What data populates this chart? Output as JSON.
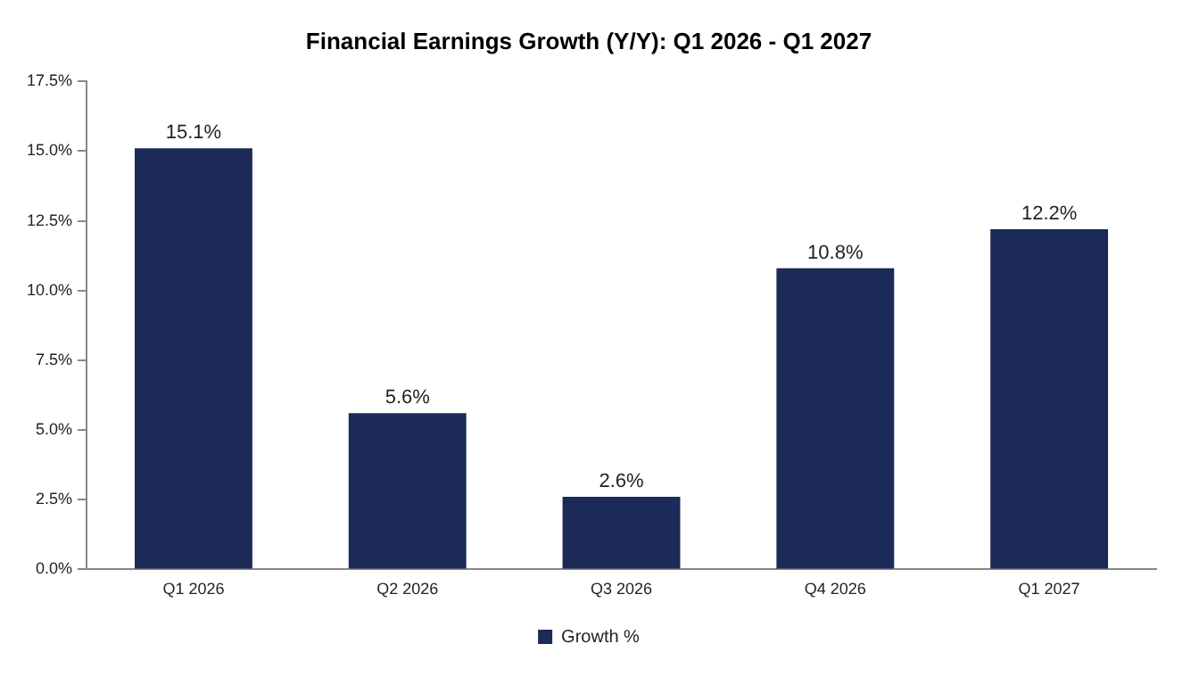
{
  "chart_data": {
    "type": "bar",
    "title": "Financial Earnings Growth (Y/Y): Q1 2026 - Q1 2027",
    "categories": [
      "Q1 2026",
      "Q2 2026",
      "Q3 2026",
      "Q4 2026",
      "Q1 2027"
    ],
    "series": [
      {
        "name": "Growth %",
        "color": "#1b2a56",
        "values": [
          15.1,
          5.6,
          2.6,
          10.8,
          12.2
        ],
        "value_labels": [
          "15.1%",
          "5.6%",
          "2.6%",
          "10.8%",
          "12.2%"
        ]
      }
    ],
    "ylim": [
      0,
      17.5
    ],
    "yticks": [
      {
        "value": 0,
        "label": "0.0%"
      },
      {
        "value": 2.5,
        "label": "2.5%"
      },
      {
        "value": 5,
        "label": "5.0%"
      },
      {
        "value": 7.5,
        "label": "7.5%"
      },
      {
        "value": 10,
        "label": "10.0%"
      },
      {
        "value": 12.5,
        "label": "12.5%"
      },
      {
        "value": 15,
        "label": "15.0%"
      },
      {
        "value": 17.5,
        "label": "17.5%"
      }
    ],
    "grid": false,
    "legend": "bottom"
  }
}
